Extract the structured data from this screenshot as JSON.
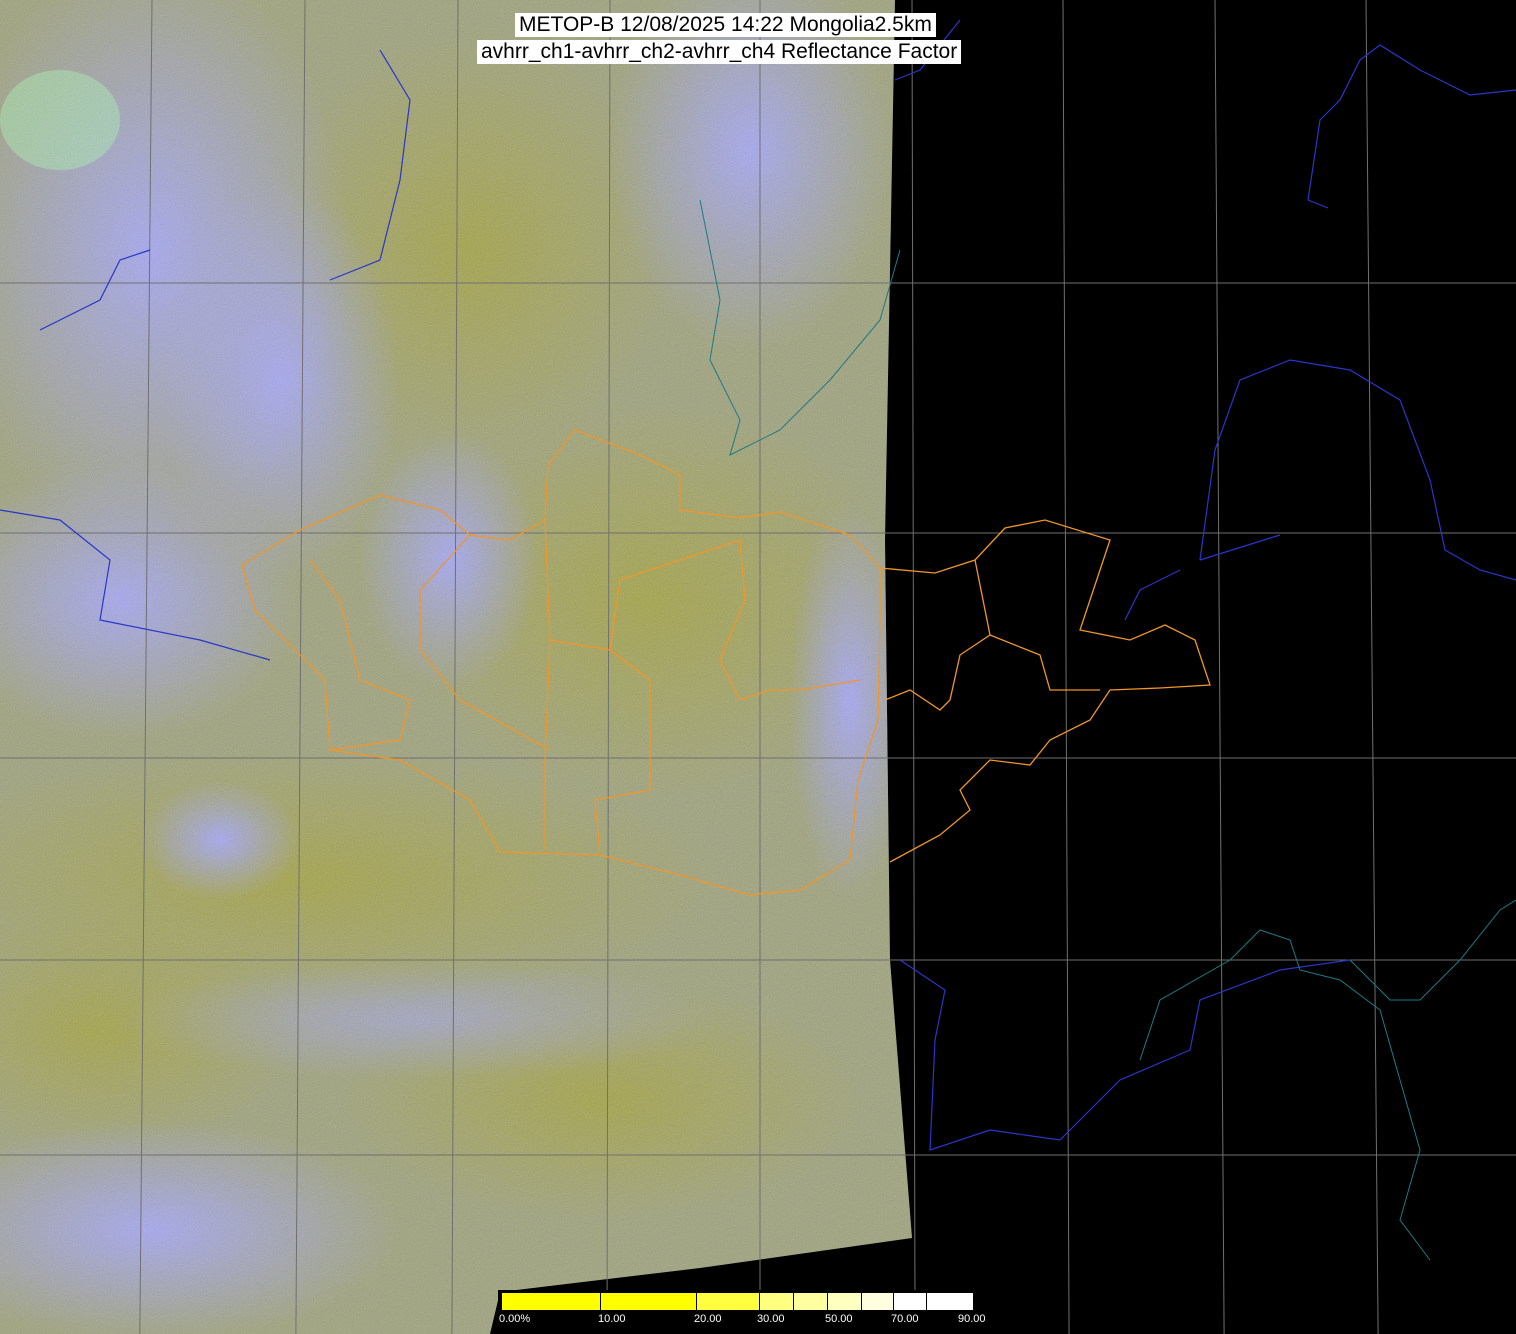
{
  "title": {
    "line1": "METOP-B 12/08/2025 14:22 Mongolia2.5km",
    "line2": "avhrr_ch1-avhrr_ch2-avhrr_ch4 Reflectance Factor"
  },
  "colors": {
    "cloud": "#a4a6f2",
    "ground": "#a3a345",
    "grid": "#707070",
    "coastline": "#2a36c8",
    "mongolia_border": "#f0962a",
    "background": "#000000"
  },
  "colorbar": {
    "segments": [
      "#ffff00",
      "#ffff00",
      "#ffff40",
      "#ffff80",
      "#ffffa0",
      "#ffffc0",
      "#ffffe0",
      "#ffffff",
      "#ffffff"
    ],
    "ticks": [
      {
        "label": "0.00%",
        "value": 0
      },
      {
        "label": "10.00",
        "value": 10
      },
      {
        "label": "20.00",
        "value": 20
      },
      {
        "label": "30.00",
        "value": 30
      },
      {
        "label": "50.00",
        "value": 50
      },
      {
        "label": "70.00",
        "value": 70
      },
      {
        "label": "90.00",
        "value": 90
      }
    ]
  }
}
